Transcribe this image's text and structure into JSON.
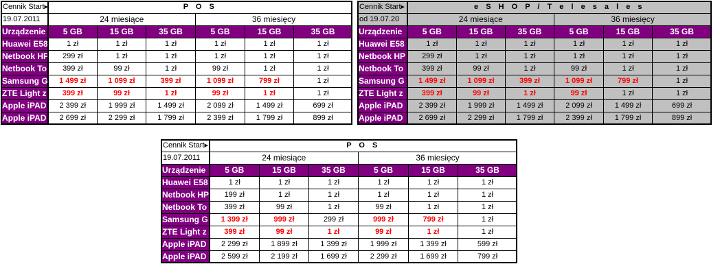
{
  "tables": [
    {
      "id": "pos-top",
      "style": "white",
      "title": "P O S",
      "info1": "Cennik Start",
      "info2": "19.07.2011",
      "period24": "24 miesiące",
      "period36": "36 miesięcy",
      "header_label": "Urządzenie",
      "plans": [
        "5 GB",
        "15 GB",
        "35 GB",
        "5 GB",
        "15 GB",
        "35 GB"
      ],
      "rows": [
        {
          "device": "Huawei E58",
          "values": [
            "1 zł",
            "1 zł",
            "1 zł",
            "1 zł",
            "1 zł",
            "1 zł"
          ],
          "red": [
            false,
            false,
            false,
            false,
            false,
            false
          ]
        },
        {
          "device": "Netbook HP",
          "values": [
            "299 zł",
            "1 zł",
            "1 zł",
            "1 zł",
            "1 zł",
            "1 zł"
          ],
          "red": [
            false,
            false,
            false,
            false,
            false,
            false
          ]
        },
        {
          "device": "Netbook To",
          "values": [
            "399 zł",
            "99 zł",
            "1 zł",
            "99 zł",
            "1 zł",
            "1 zł"
          ],
          "red": [
            false,
            false,
            false,
            false,
            false,
            false
          ]
        },
        {
          "device": "Samsung G",
          "values": [
            "1 499 zł",
            "1 099 zł",
            "399 zł",
            "1 099 zł",
            "799 zł",
            "1 zł"
          ],
          "red": [
            true,
            true,
            true,
            true,
            true,
            false
          ]
        },
        {
          "device": "ZTE Light z",
          "values": [
            "399 zł",
            "99 zł",
            "1 zł",
            "99 zł",
            "1 zł",
            "1 zł"
          ],
          "red": [
            true,
            true,
            true,
            true,
            true,
            false
          ]
        },
        {
          "device": "Apple iPAD",
          "values": [
            "2 399 zł",
            "1 999 zł",
            "1 499 zł",
            "2 099 zł",
            "1 499 zł",
            "699 zł"
          ],
          "red": [
            false,
            false,
            false,
            false,
            false,
            false
          ]
        },
        {
          "device": "Apple iPAD",
          "values": [
            "2 699 zł",
            "2 299 zł",
            "1 799 zł",
            "2 399 zł",
            "1 799 zł",
            "899 zł"
          ],
          "red": [
            false,
            false,
            false,
            false,
            false,
            false
          ]
        }
      ]
    },
    {
      "id": "eshop",
      "style": "gray",
      "title": "e S H O P  /  T e l e s a l e s",
      "info1": "Cennik Start",
      "info2": "od 19.07.20",
      "period24": "24 miesiące",
      "period36": "36 miesięcy",
      "header_label": "Urządzenie",
      "plans": [
        "5 GB",
        "15 GB",
        "35 GB",
        "5 GB",
        "15 GB",
        "35 GB"
      ],
      "rows": [
        {
          "device": "Huawei E58",
          "values": [
            "1 zł",
            "1 zł",
            "1 zł",
            "1 zł",
            "1 zł",
            "1 zł"
          ],
          "red": [
            false,
            false,
            false,
            false,
            false,
            false
          ]
        },
        {
          "device": "Netbook HP",
          "values": [
            "299 zł",
            "1 zł",
            "1 zł",
            "1 zł",
            "1 zł",
            "1 zł"
          ],
          "red": [
            false,
            false,
            false,
            false,
            false,
            false
          ]
        },
        {
          "device": "Netbook To",
          "values": [
            "399 zł",
            "99 zł",
            "1 zł",
            "99 zł",
            "1 zł",
            "1 zł"
          ],
          "red": [
            false,
            false,
            false,
            false,
            false,
            false
          ]
        },
        {
          "device": "Samsung G",
          "values": [
            "1 499 zł",
            "1 099 zł",
            "399 zł",
            "1 099 zł",
            "799 zł",
            "1 zł"
          ],
          "red": [
            true,
            true,
            true,
            true,
            true,
            false
          ]
        },
        {
          "device": "ZTE Light z",
          "values": [
            "399 zł",
            "99 zł",
            "1 zł",
            "99 zł",
            "1 zł",
            "1 zł"
          ],
          "red": [
            true,
            true,
            true,
            true,
            false,
            false
          ]
        },
        {
          "device": "Apple iPAD",
          "values": [
            "2 399 zł",
            "1 999 zł",
            "1 499 zł",
            "2 099 zł",
            "1 499 zł",
            "699 zł"
          ],
          "red": [
            false,
            false,
            false,
            false,
            false,
            false
          ]
        },
        {
          "device": "Apple iPAD",
          "values": [
            "2 699 zł",
            "2 299 zł",
            "1 799 zł",
            "2 399 zł",
            "1 799 zł",
            "899 zł"
          ],
          "red": [
            false,
            false,
            false,
            false,
            false,
            false
          ]
        }
      ]
    },
    {
      "id": "pos-bottom",
      "style": "white",
      "title": "P O S",
      "info1": "Cennik Start",
      "info2": "19.07.2011",
      "period24": "24 miesiące",
      "period36": "36 miesięcy",
      "header_label": "Urządzenie",
      "plans": [
        "5 GB",
        "15 GB",
        "35 GB",
        "5 GB",
        "15 GB",
        "35 GB"
      ],
      "rows": [
        {
          "device": "Huawei E58",
          "values": [
            "1 zł",
            "1 zł",
            "1 zł",
            "1 zł",
            "1 zł",
            "1 zł"
          ],
          "red": [
            false,
            false,
            false,
            false,
            false,
            false
          ]
        },
        {
          "device": "Netbook HP",
          "values": [
            "199 zł",
            "1 zł",
            "1 zł",
            "1 zł",
            "1 zł",
            "1 zł"
          ],
          "red": [
            false,
            false,
            false,
            false,
            false,
            false
          ]
        },
        {
          "device": "Netbook To",
          "values": [
            "399 zł",
            "99 zł",
            "1 zł",
            "99 zł",
            "1 zł",
            "1 zł"
          ],
          "red": [
            false,
            false,
            false,
            false,
            false,
            false
          ]
        },
        {
          "device": "Samsung G",
          "values": [
            "1 399 zł",
            "999 zł",
            "299 zł",
            "999 zł",
            "799 zł",
            "1 zł"
          ],
          "red": [
            true,
            true,
            false,
            true,
            true,
            false
          ]
        },
        {
          "device": "ZTE Light z",
          "values": [
            "399 zł",
            "99 zł",
            "1 zł",
            "99 zł",
            "1 zł",
            "1 zł"
          ],
          "red": [
            true,
            true,
            true,
            true,
            true,
            false
          ]
        },
        {
          "device": "Apple iPAD",
          "values": [
            "2 299 zł",
            "1 899 zł",
            "1 399 zł",
            "1 999 zł",
            "1 399 zł",
            "599 zł"
          ],
          "red": [
            false,
            false,
            false,
            false,
            false,
            false
          ]
        },
        {
          "device": "Apple iPAD",
          "values": [
            "2 599 zł",
            "2 199 zł",
            "1 699 zł",
            "2 299 zł",
            "1 699 zł",
            "799 zł"
          ],
          "red": [
            false,
            false,
            false,
            false,
            false,
            false
          ]
        }
      ]
    }
  ],
  "colors": {
    "header_bg": "#800080",
    "header_text": "#ffffff",
    "highlight": "#ff0000",
    "eshop_bg": "#c0c0c0"
  }
}
